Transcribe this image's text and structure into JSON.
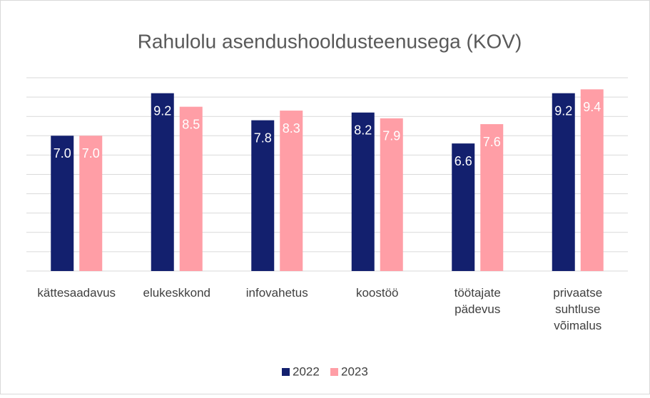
{
  "chart_data": {
    "type": "bar",
    "title": "Rahulolu asendushooldusteenusega (KOV)",
    "categories": [
      "kättesaadavus",
      "elukeskkond",
      "infovahetus",
      "koostöö",
      "töötajate pädevus",
      "privaatse suhtluse võimalus"
    ],
    "series": [
      {
        "name": "2022",
        "color": "#13206e",
        "values": [
          7.0,
          9.2,
          7.8,
          8.2,
          6.6,
          9.2
        ],
        "value_labels": [
          "7.0",
          "9.2",
          "7.8",
          "8.2",
          "6.6",
          "9.2"
        ]
      },
      {
        "name": "2023",
        "color": "#ff9ea6",
        "values": [
          7.0,
          8.5,
          8.3,
          7.9,
          7.6,
          9.4
        ],
        "value_labels": [
          "7.0",
          "8.5",
          "8.3",
          "7.9",
          "7.6",
          "9.4"
        ]
      }
    ],
    "ylim": [
      0,
      10
    ],
    "yticks": [
      0,
      1,
      2,
      3,
      4,
      5,
      6,
      7,
      8,
      9,
      10
    ],
    "grid": true,
    "legend": "bottom"
  }
}
